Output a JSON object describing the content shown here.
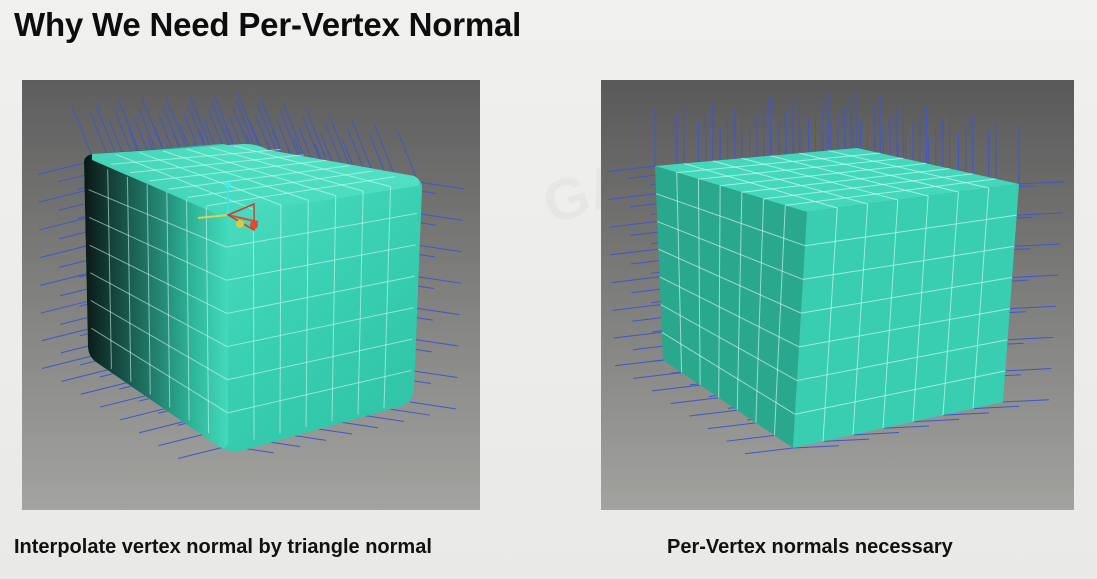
{
  "slide": {
    "title": "Why We Need Per-Vertex Normal",
    "left_caption": "Interpolate vertex normal by triangle normal",
    "right_caption": "Per-Vertex normals necessary"
  },
  "colors": {
    "cube_teal": "#3dd6b8",
    "normal_lines": "#3f57c8",
    "viewport_bg": "#7d7d7d"
  }
}
